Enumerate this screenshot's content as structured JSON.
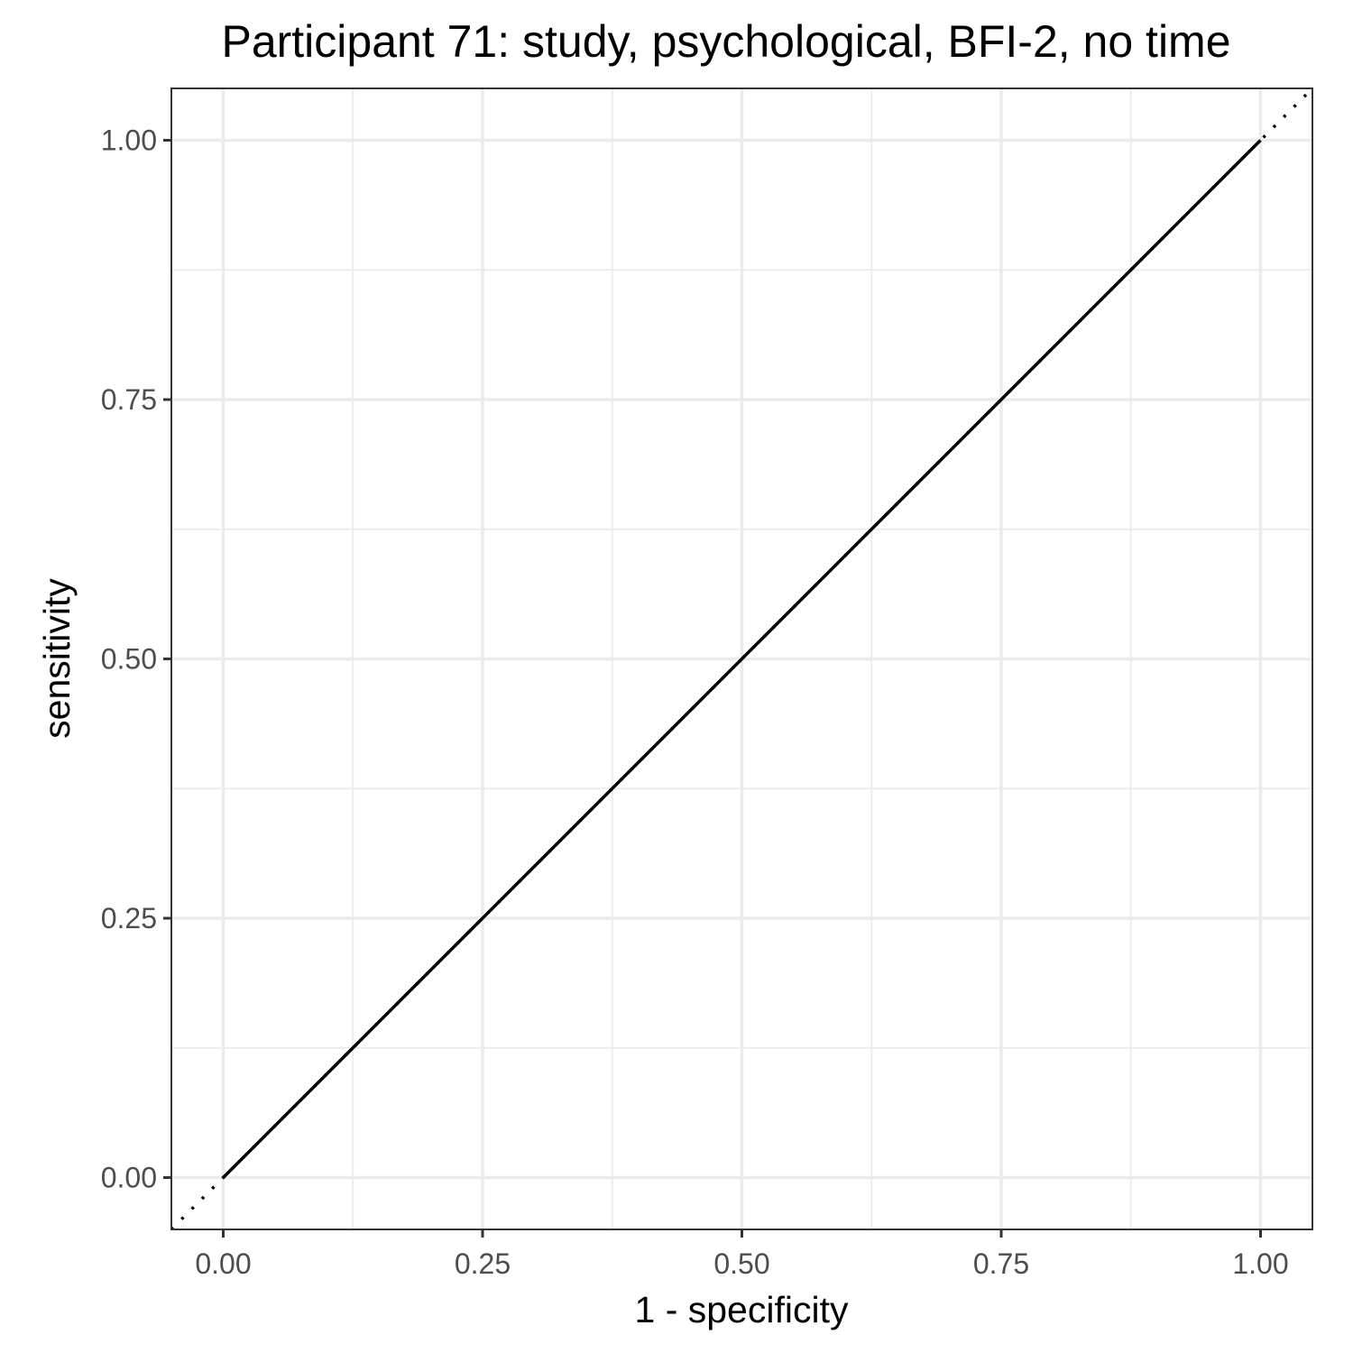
{
  "chart_data": {
    "type": "line",
    "title": "Participant 71: study, psychological, BFI-2, no time",
    "xlabel": "1 - specificity",
    "ylabel": "sensitivity",
    "xlim": [
      -0.05,
      1.05
    ],
    "ylim": [
      -0.05,
      1.05
    ],
    "x_ticks": [
      0.0,
      0.25,
      0.5,
      0.75,
      1.0
    ],
    "x_tick_labels": [
      "0.00",
      "0.25",
      "0.50",
      "0.75",
      "1.00"
    ],
    "y_ticks": [
      0.0,
      0.25,
      0.5,
      0.75,
      1.0
    ],
    "y_tick_labels": [
      "0.00",
      "0.25",
      "0.50",
      "0.75",
      "1.00"
    ],
    "grid": true,
    "legend": "none",
    "series": [
      {
        "style": "solid",
        "color": "#000000",
        "x": [
          0.0,
          1.0
        ],
        "y": [
          0.0,
          1.0
        ]
      }
    ],
    "reference_line": {
      "style": "dotted",
      "color": "#000000",
      "intercept": 0,
      "slope": 1
    }
  }
}
